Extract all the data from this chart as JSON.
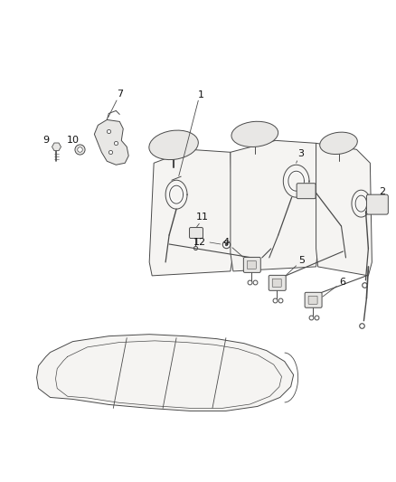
{
  "bg_color": "#ffffff",
  "line_color": "#4a4a4a",
  "lw": 0.7,
  "fig_width": 4.38,
  "fig_height": 5.33,
  "dpi": 100
}
